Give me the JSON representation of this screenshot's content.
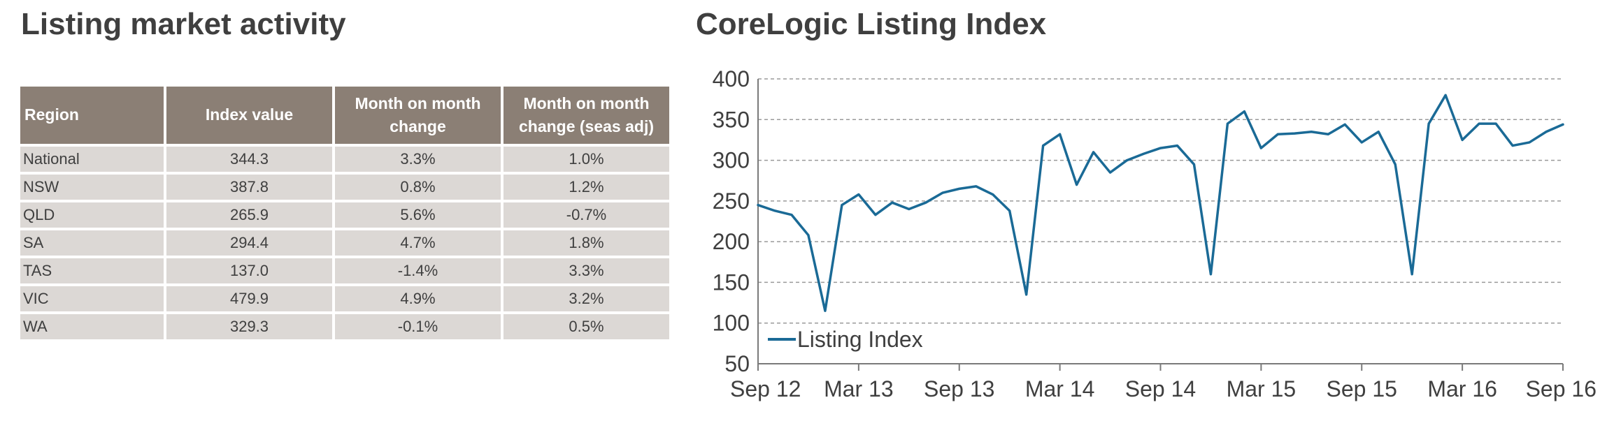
{
  "left_title": "Listing market activity",
  "table": {
    "headers": {
      "region": "Region",
      "index_value": "Index value",
      "mom_line1": "Month on month",
      "mom_line2": "change",
      "mom_sa_line1": "Month on month",
      "mom_sa_line2": "change (seas adj)"
    },
    "rows": [
      {
        "region": "National",
        "index_value": "344.3",
        "mom": "3.3%",
        "mom_sa": "1.0%"
      },
      {
        "region": "NSW",
        "index_value": "387.8",
        "mom": "0.8%",
        "mom_sa": "1.2%"
      },
      {
        "region": "QLD",
        "index_value": "265.9",
        "mom": "5.6%",
        "mom_sa": "-0.7%"
      },
      {
        "region": "SA",
        "index_value": "294.4",
        "mom": "4.7%",
        "mom_sa": "1.8%"
      },
      {
        "region": "TAS",
        "index_value": "137.0",
        "mom": "-1.4%",
        "mom_sa": "3.3%"
      },
      {
        "region": "VIC",
        "index_value": "479.9",
        "mom": "4.9%",
        "mom_sa": "3.2%"
      },
      {
        "region": "WA",
        "index_value": "329.3",
        "mom": "-0.1%",
        "mom_sa": "0.5%"
      }
    ]
  },
  "colors": {
    "header_bg": "#8b7f75",
    "row_bg": "#dcd8d5",
    "line": "#1a6a96",
    "grid": "#9a9a9a"
  },
  "chart_data": {
    "type": "line",
    "title": "CoreLogic Listing Index",
    "ylim": [
      50,
      400
    ],
    "yticks": [
      400,
      350,
      300,
      250,
      200,
      150,
      100,
      50
    ],
    "x_range": [
      "2012-09",
      "2016-09"
    ],
    "xtick_labels": [
      "Sep 12",
      "Mar 13",
      "Sep 13",
      "Mar 14",
      "Sep 14",
      "Mar 15",
      "Sep 15",
      "Mar 16",
      "Sep 16"
    ],
    "grid": "horizontal dashed",
    "legend_position": "bottom-left",
    "series": [
      {
        "name": "Listing Index",
        "x": [
          "2012-09",
          "2012-10",
          "2012-11",
          "2012-12",
          "2013-01",
          "2013-02",
          "2013-03",
          "2013-04",
          "2013-05",
          "2013-06",
          "2013-07",
          "2013-08",
          "2013-09",
          "2013-10",
          "2013-11",
          "2013-12",
          "2014-01",
          "2014-02",
          "2014-03",
          "2014-04",
          "2014-05",
          "2014-06",
          "2014-07",
          "2014-08",
          "2014-09",
          "2014-10",
          "2014-11",
          "2014-12",
          "2015-01",
          "2015-02",
          "2015-03",
          "2015-04",
          "2015-05",
          "2015-06",
          "2015-07",
          "2015-08",
          "2015-09",
          "2015-10",
          "2015-11",
          "2015-12",
          "2016-01",
          "2016-02",
          "2016-03",
          "2016-04",
          "2016-05",
          "2016-06",
          "2016-07",
          "2016-08",
          "2016-09"
        ],
        "values": [
          245,
          238,
          233,
          208,
          115,
          245,
          258,
          233,
          248,
          240,
          248,
          260,
          265,
          268,
          258,
          238,
          135,
          318,
          332,
          270,
          310,
          285,
          300,
          308,
          315,
          318,
          295,
          160,
          345,
          360,
          315,
          332,
          333,
          335,
          332,
          344,
          322,
          335,
          295,
          160,
          345,
          380,
          325,
          345,
          345,
          318,
          322,
          335,
          344
        ]
      }
    ]
  }
}
